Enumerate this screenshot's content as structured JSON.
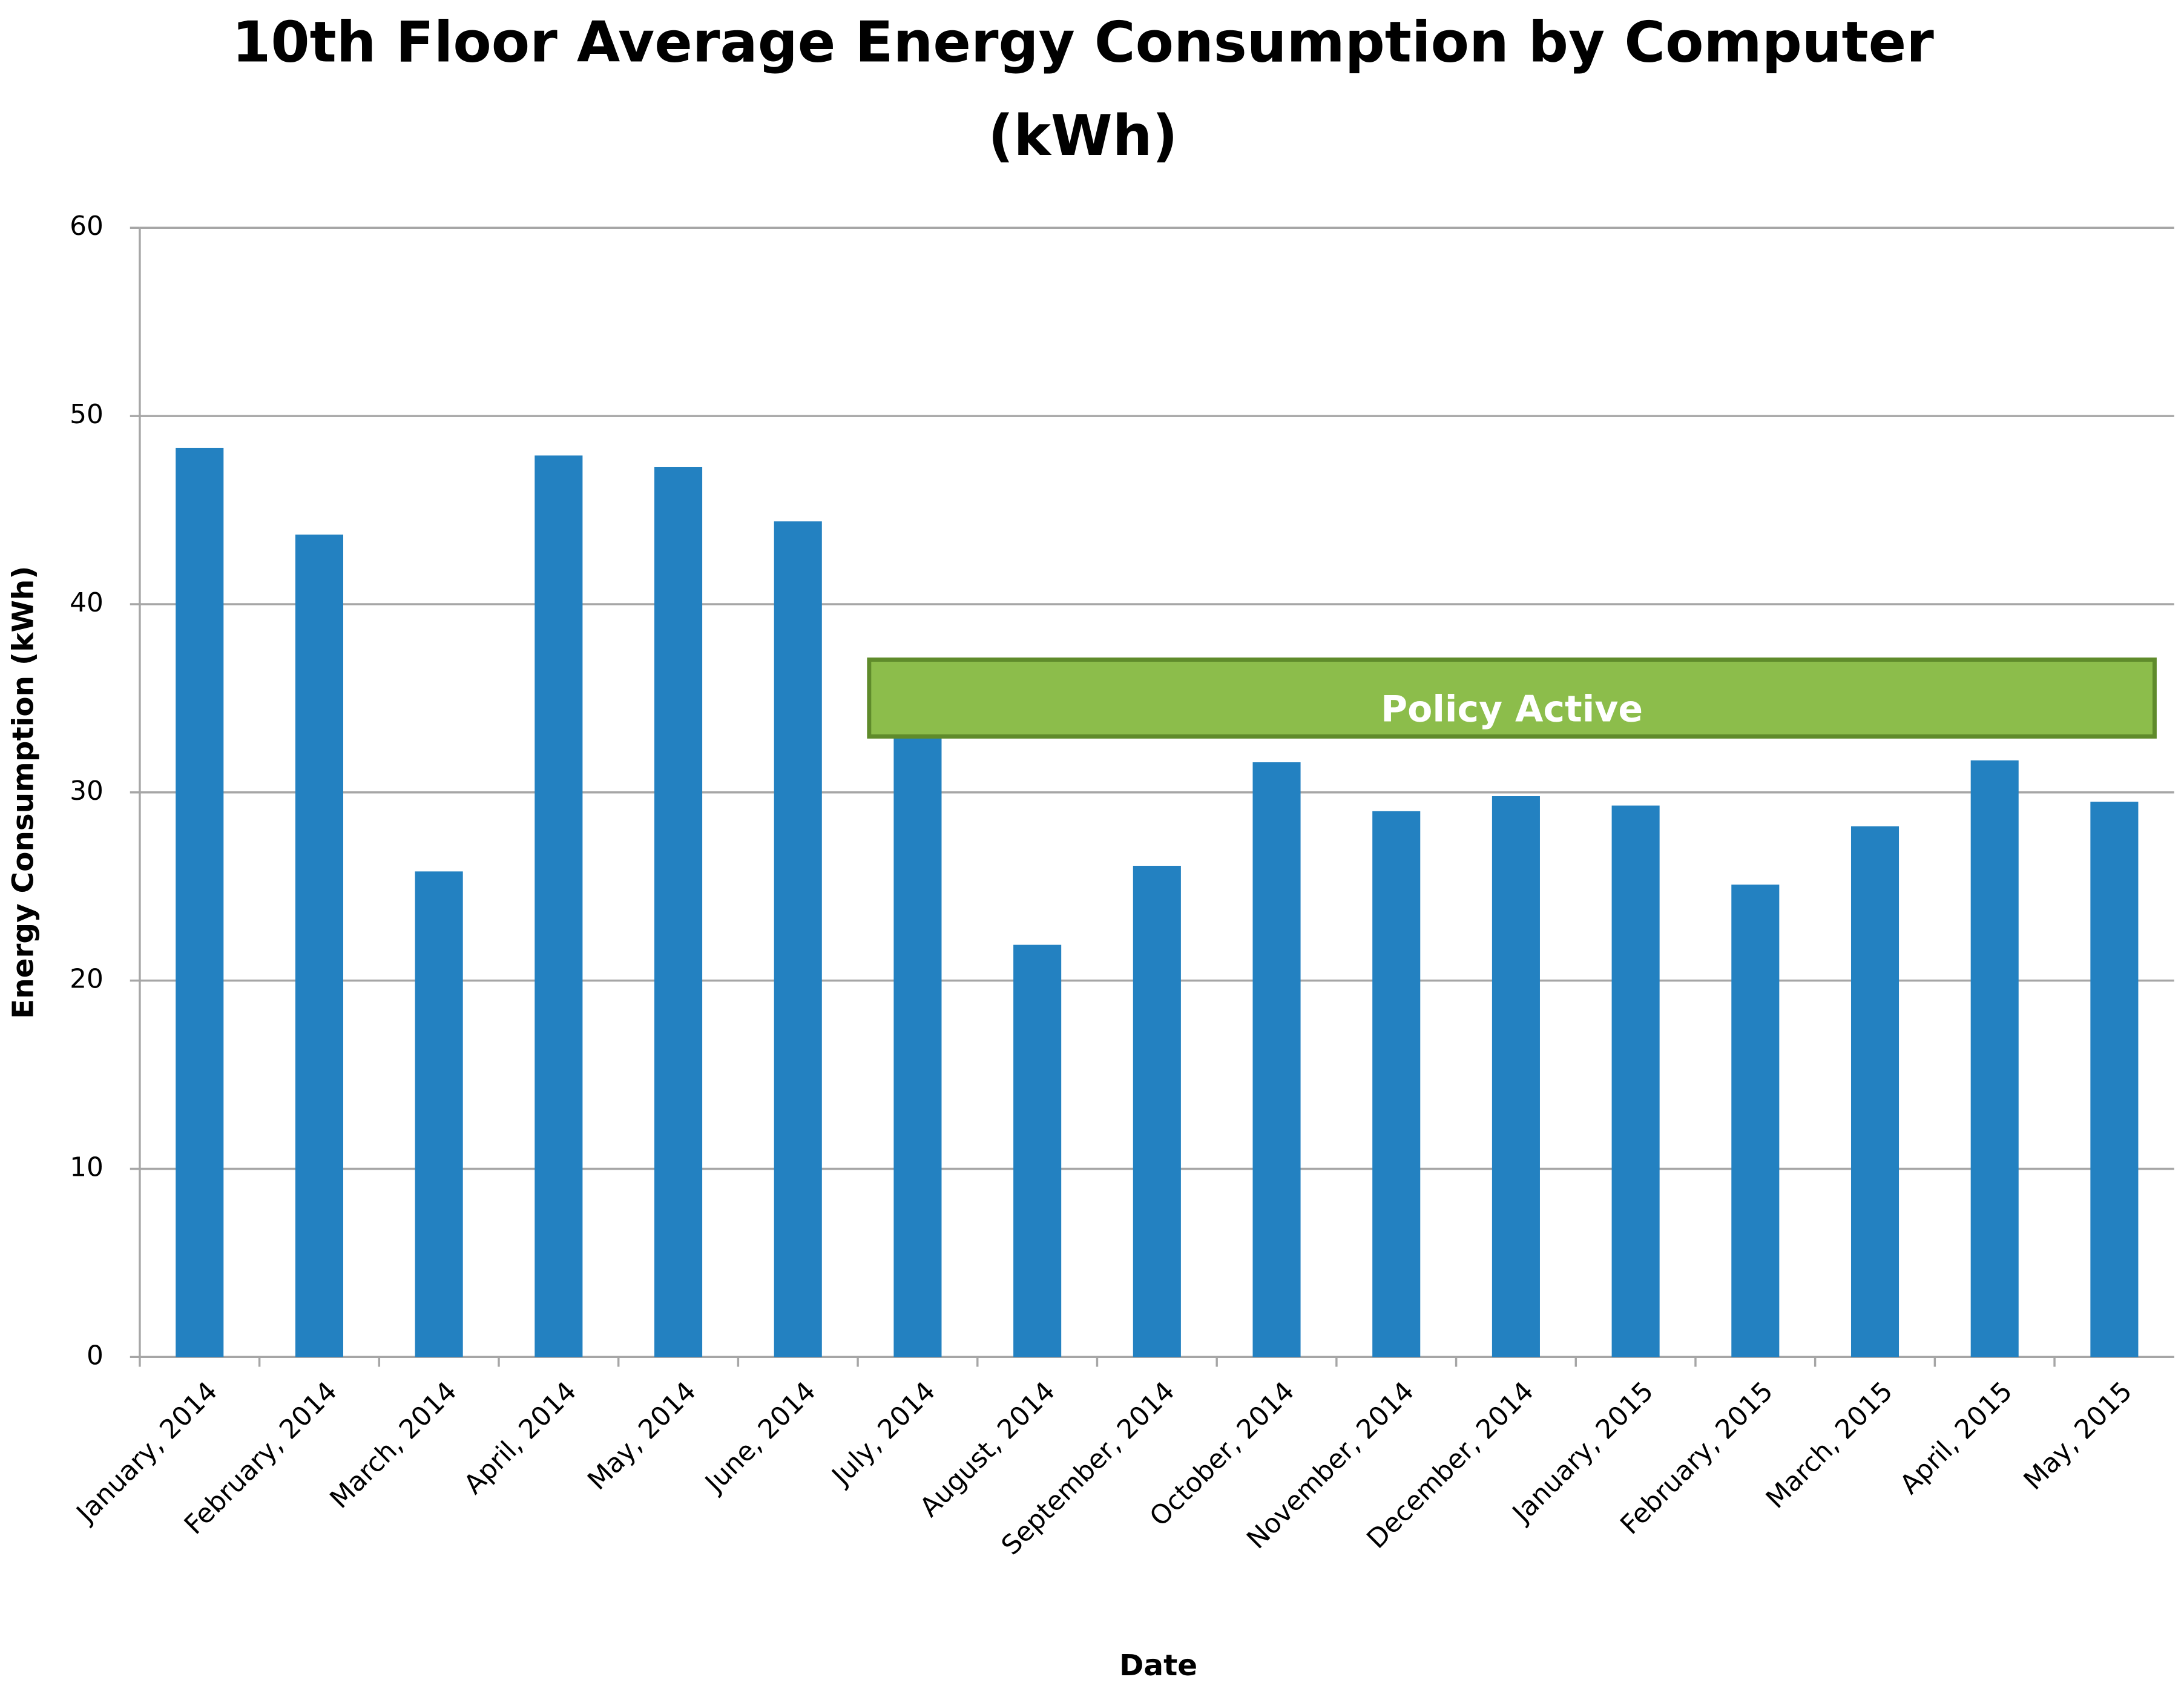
{
  "chart_data": {
    "type": "bar",
    "title": "10th Floor Average Energy Consumption by Computer",
    "subtitle": "(kWh)",
    "x_label": "Date",
    "y_label": "Energy Consumption (kWh)",
    "annotation": "Policy Active",
    "categories": [
      "January, 2014",
      "February, 2014",
      "March, 2014",
      "April, 2014",
      "May, 2014",
      "June, 2014",
      "July, 2014",
      "August, 2014",
      "September, 2014",
      "October, 2014",
      "November, 2014",
      "December, 2014",
      "January, 2015",
      "February, 2015",
      "March, 2015",
      "April, 2015",
      "May, 2015"
    ],
    "values": [
      48.3,
      43.7,
      25.8,
      47.9,
      47.3,
      44.4,
      33,
      21.9,
      26.1,
      31.6,
      29.0,
      29.8,
      29.3,
      25.1,
      28.2,
      31.7,
      29.5
    ],
    "color": "#2381c1",
    "ylim": [
      0,
      60
    ],
    "yticks": [
      0,
      10,
      20,
      30,
      40,
      50,
      60
    ],
    "grid": true
  }
}
